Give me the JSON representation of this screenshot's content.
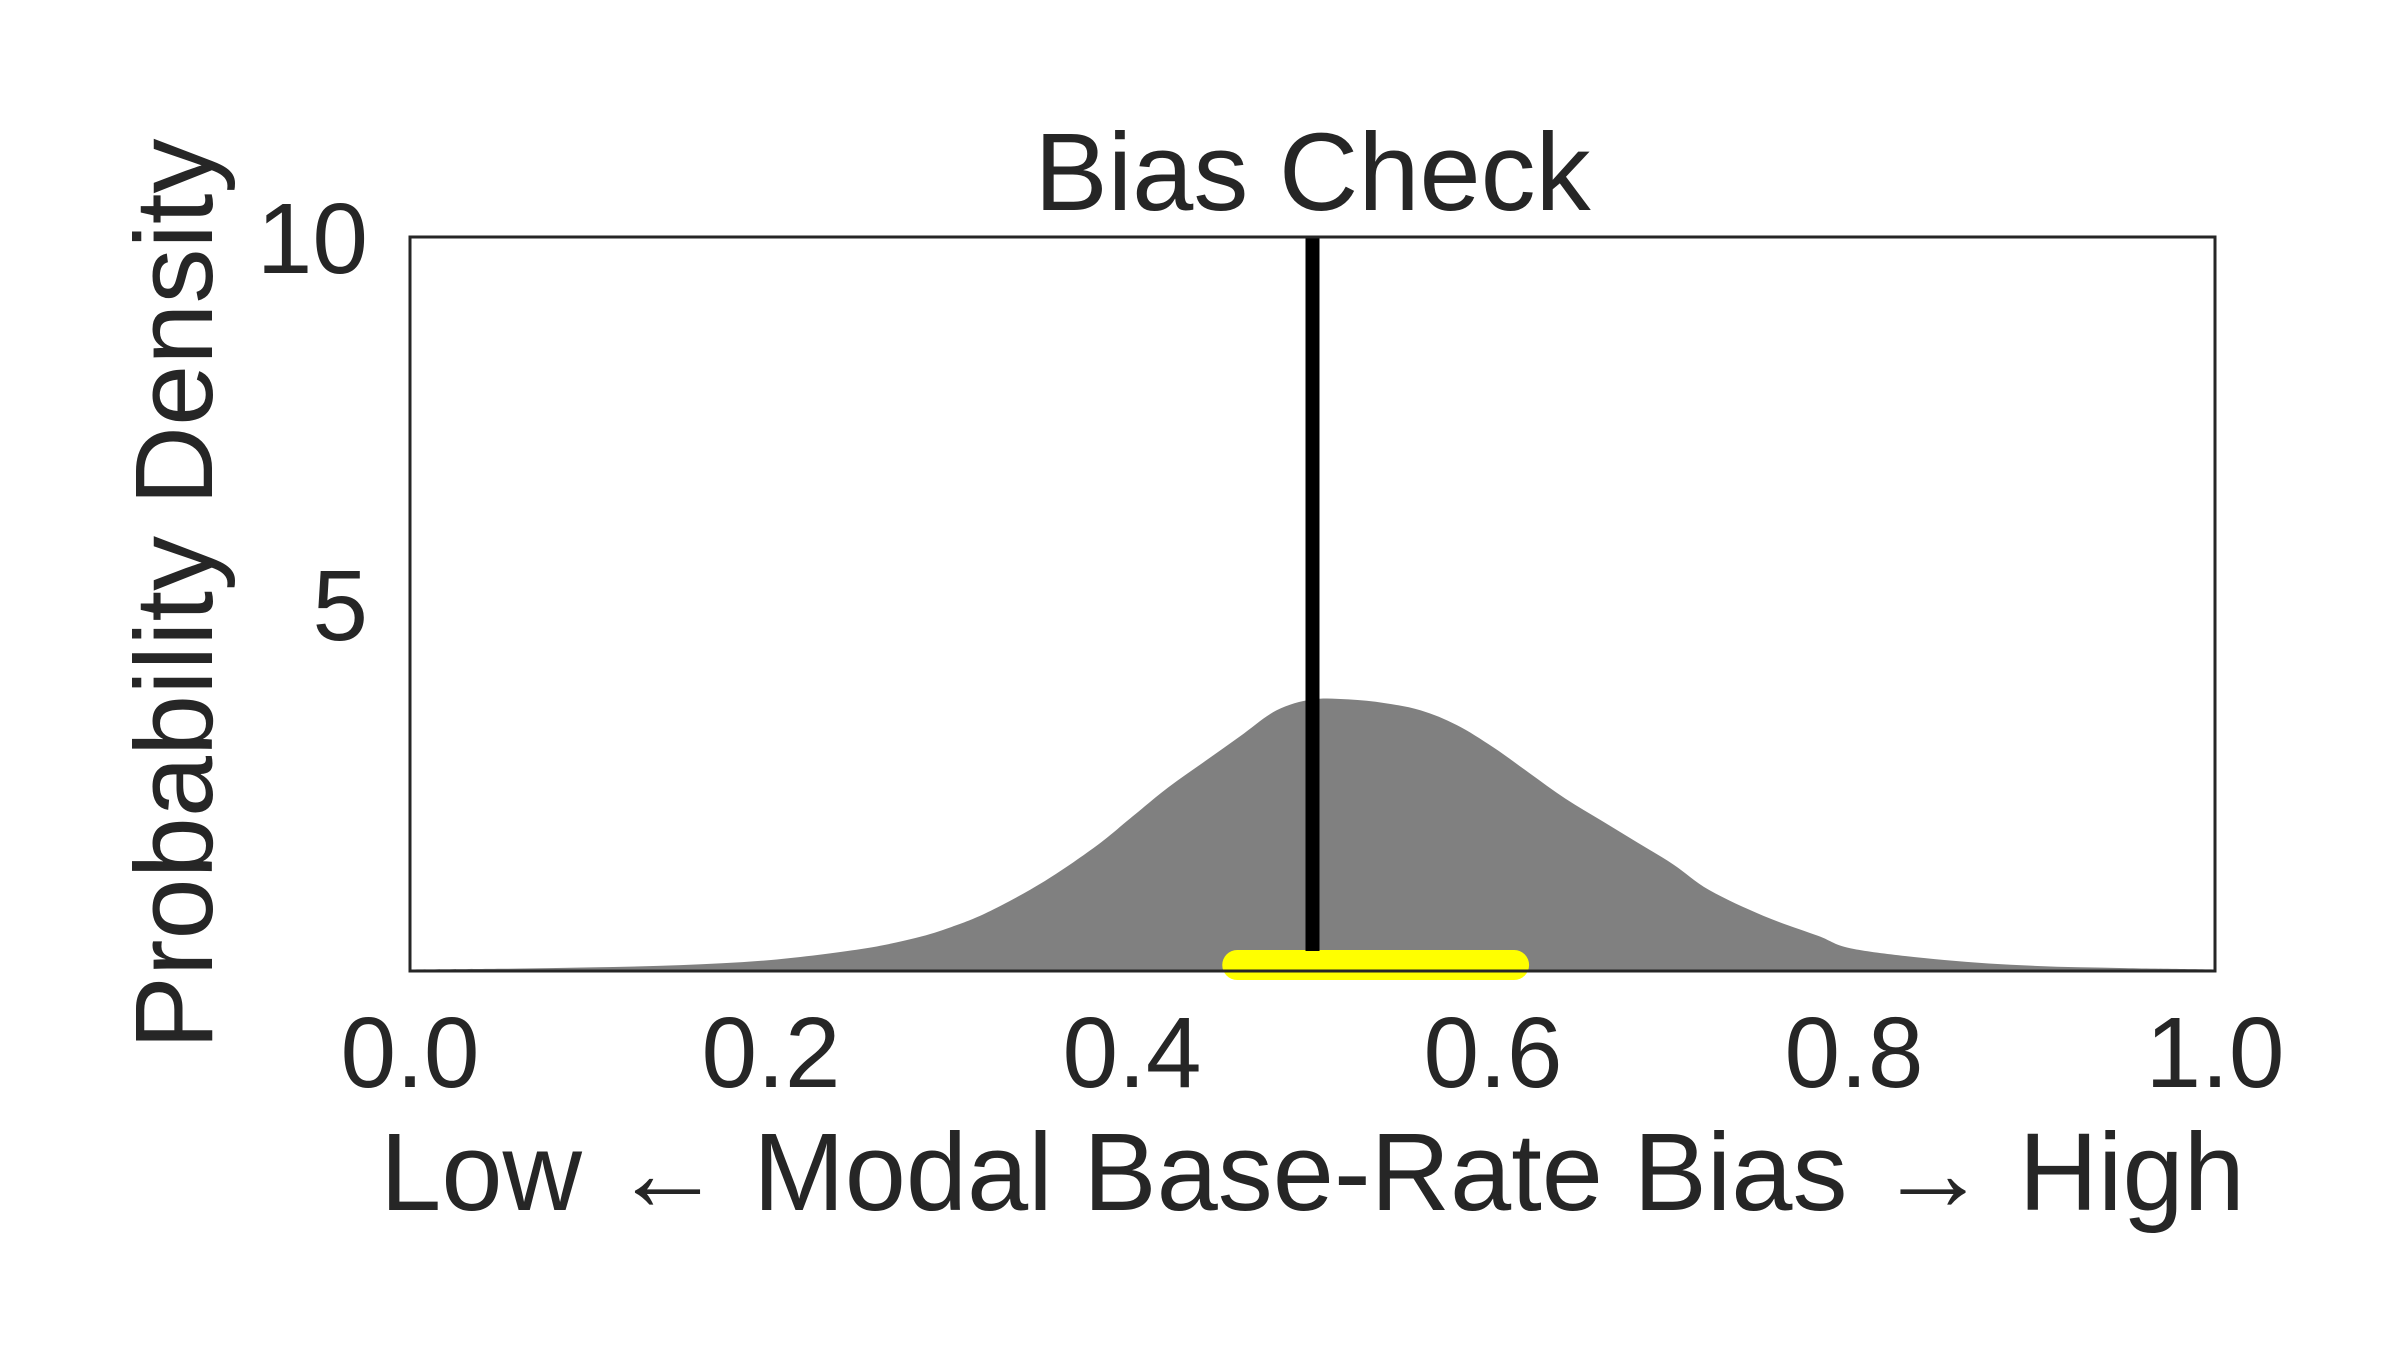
{
  "chart_data": {
    "type": "area",
    "title": "Bias Check",
    "xlabel": "Low ← Modal Base-Rate Bias → High",
    "ylabel": "Probability Density",
    "xlim": [
      0.0,
      1.0
    ],
    "ylim": [
      0,
      10
    ],
    "xticks": [
      "0.0",
      "0.2",
      "0.4",
      "0.6",
      "0.8",
      "1.0"
    ],
    "yticks": [
      "5",
      "10"
    ],
    "grid": false,
    "density": {
      "x": [
        0.0,
        0.05,
        0.1,
        0.15,
        0.2,
        0.25,
        0.28,
        0.3,
        0.32,
        0.35,
        0.38,
        0.4,
        0.42,
        0.44,
        0.46,
        0.48,
        0.5,
        0.52,
        0.54,
        0.56,
        0.58,
        0.6,
        0.62,
        0.64,
        0.66,
        0.68,
        0.7,
        0.72,
        0.75,
        0.78,
        0.8,
        0.85,
        0.9,
        0.95,
        1.0
      ],
      "y": [
        0.02,
        0.03,
        0.05,
        0.08,
        0.15,
        0.3,
        0.45,
        0.6,
        0.8,
        1.2,
        1.7,
        2.1,
        2.5,
        2.85,
        3.2,
        3.55,
        3.7,
        3.7,
        3.65,
        3.55,
        3.35,
        3.05,
        2.7,
        2.35,
        2.05,
        1.75,
        1.45,
        1.1,
        0.75,
        0.48,
        0.3,
        0.15,
        0.07,
        0.04,
        0.02
      ],
      "color": "#808080"
    },
    "reference_line": {
      "x": 0.5,
      "color": "#000000"
    },
    "interval": {
      "x_start": 0.45,
      "x_end": 0.62,
      "color": "#ffff00"
    }
  }
}
